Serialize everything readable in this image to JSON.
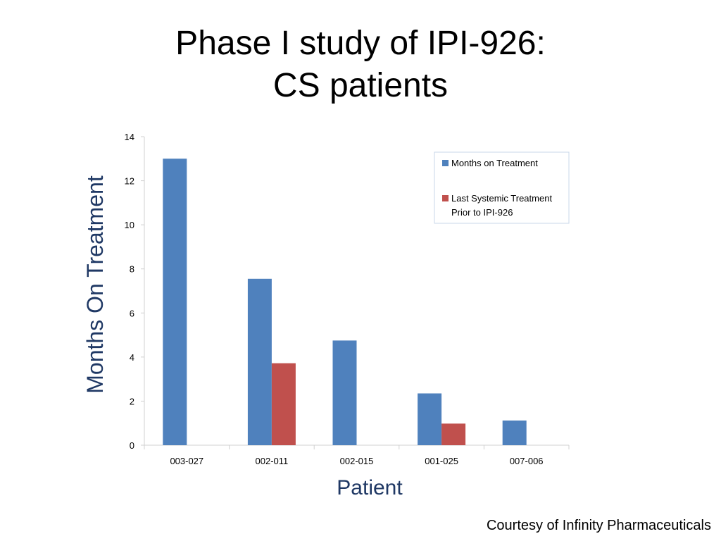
{
  "slide": {
    "title_line1": "Phase I study of IPI-926:",
    "title_line2": "CS patients",
    "credit": "Courtesy of Infinity Pharmaceuticals"
  },
  "chart_data": {
    "type": "bar",
    "categories": [
      "003-027",
      "002-011",
      "002-015",
      "001-025",
      "007-006"
    ],
    "series": [
      {
        "name": "Months on Treatment",
        "color": "#4F81BD",
        "values": [
          13.0,
          7.55,
          4.75,
          2.35,
          1.12
        ]
      },
      {
        "name": "Last Systemic Treatment Prior to IPI-926",
        "name_lines": [
          "Last Systemic Treatment",
          "Prior to IPI-926"
        ],
        "color": "#C0504D",
        "values": [
          null,
          3.72,
          null,
          0.98,
          null
        ]
      }
    ],
    "xlabel": "Patient",
    "ylabel": "Months On Treatment",
    "ylim": [
      0,
      14
    ],
    "yticks": [
      0,
      2,
      4,
      6,
      8,
      10,
      12,
      14
    ],
    "grid": false,
    "legend": "top-right",
    "label_color": "#1F3864"
  }
}
